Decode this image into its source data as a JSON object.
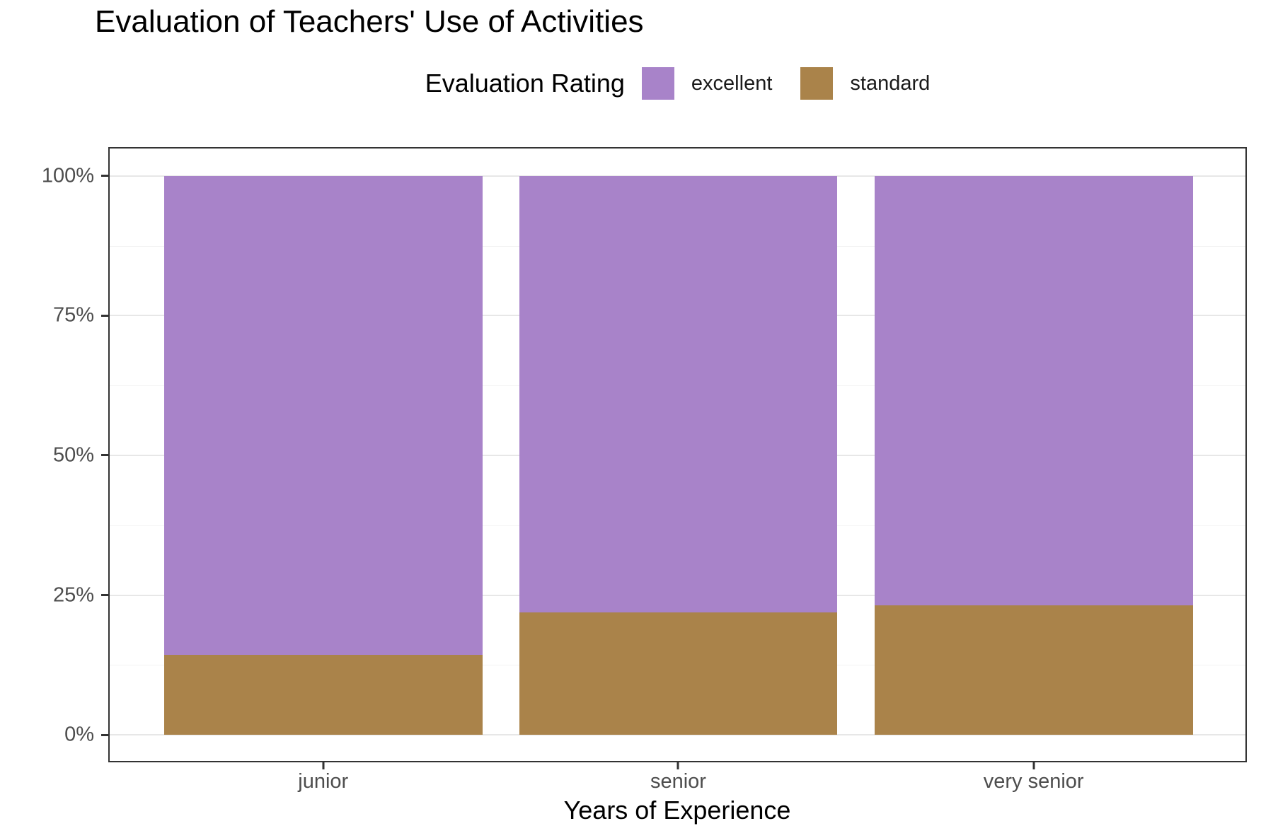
{
  "chart_data": {
    "type": "bar",
    "subtype": "stacked-percent",
    "title": "Evaluation of Teachers' Use of Activities",
    "xlabel": "Years of Experience",
    "ylabel": "",
    "legend_title": "Evaluation Rating",
    "legend_position": "top",
    "categories": [
      "junior",
      "senior",
      "very senior"
    ],
    "series": [
      {
        "name": "excellent",
        "color": "#A883C9",
        "values": [
          85.7,
          78.1,
          76.8
        ]
      },
      {
        "name": "standard",
        "color": "#AA834A",
        "values": [
          14.3,
          21.9,
          23.2
        ]
      }
    ],
    "stack_bottom_to_top": [
      "standard",
      "excellent"
    ],
    "ylim": [
      0,
      100
    ],
    "y_ticks": [
      {
        "value": 0,
        "label": "0%"
      },
      {
        "value": 25,
        "label": "25%"
      },
      {
        "value": 50,
        "label": "50%"
      },
      {
        "value": 75,
        "label": "75%"
      },
      {
        "value": 100,
        "label": "100%"
      }
    ],
    "y_minor_ticks": [
      12.5,
      37.5,
      62.5,
      87.5
    ],
    "grid": "horizontal major+minor",
    "colors": {
      "excellent": "#A883C9",
      "standard": "#AA834A",
      "axis_text": "#4D4D4D",
      "axis_title": "#000000",
      "panel_border": "#333333",
      "grid_major": "#E7E7E7",
      "grid_minor": "#F3F3F3"
    }
  }
}
